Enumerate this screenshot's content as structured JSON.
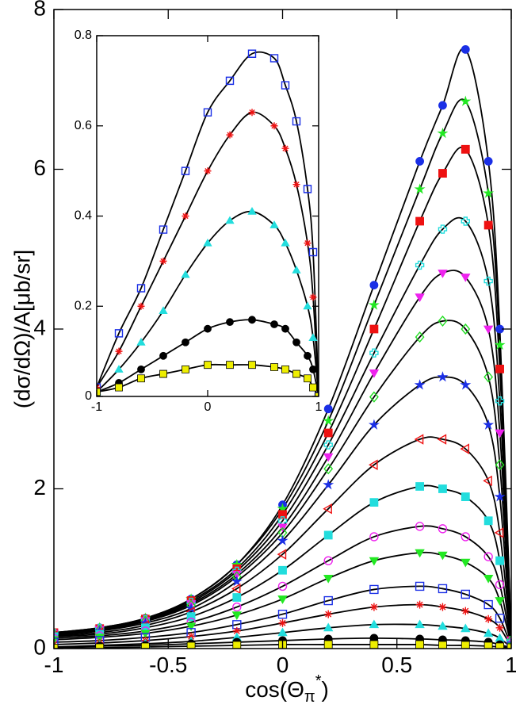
{
  "chart_data": [
    {
      "type": "scatter",
      "fit_curves": true,
      "y_label": "(dσ/dΩ)/A[μb/sr]",
      "x_label": [
        "cos(Θ",
        "π",
        "*",
        ")"
      ],
      "xlim": [
        -1,
        1
      ],
      "ylim": [
        0,
        8
      ],
      "xticks": [
        -1,
        -0.5,
        0,
        0.5,
        1
      ],
      "yticks": [
        0,
        2,
        4,
        6,
        8
      ],
      "x": [
        -1,
        -0.8,
        -0.6,
        -0.4,
        -0.2,
        0,
        0.2,
        0.4,
        0.6,
        0.7,
        0.8,
        0.9,
        0.95,
        1
      ],
      "series": [
        {
          "color": "#1a2fe6",
          "marker": "circle",
          "filled": true,
          "values": [
            0.2,
            0.26,
            0.38,
            0.62,
            1.05,
            1.8,
            3.0,
            4.55,
            6.1,
            6.8,
            7.5,
            6.1,
            4.0,
            0.1
          ]
        },
        {
          "color": "#22e822",
          "marker": "star",
          "filled": true,
          "values": [
            0.2,
            0.26,
            0.38,
            0.62,
            1.05,
            1.75,
            2.85,
            4.3,
            5.75,
            6.45,
            6.85,
            5.7,
            3.8,
            0.1
          ]
        },
        {
          "color": "#ee1111",
          "marker": "square",
          "filled": true,
          "values": [
            0.2,
            0.25,
            0.37,
            0.6,
            1.0,
            1.68,
            2.7,
            4.0,
            5.35,
            5.95,
            6.25,
            5.3,
            3.5,
            0.1
          ]
        },
        {
          "color": "#22dddd",
          "marker": "plus",
          "filled": false,
          "values": [
            0.19,
            0.25,
            0.36,
            0.58,
            0.97,
            1.6,
            2.55,
            3.7,
            4.8,
            5.25,
            5.35,
            4.6,
            3.1,
            0.1
          ]
        },
        {
          "color": "#ee22ee",
          "marker": "tri-down",
          "filled": true,
          "values": [
            0.19,
            0.24,
            0.35,
            0.56,
            0.93,
            1.52,
            2.4,
            3.45,
            4.4,
            4.7,
            4.65,
            4.0,
            2.7,
            0.1
          ]
        },
        {
          "color": "#22dd22",
          "marker": "diamond",
          "filled": false,
          "values": [
            0.18,
            0.23,
            0.34,
            0.54,
            0.9,
            1.45,
            2.25,
            3.15,
            3.9,
            4.1,
            4.0,
            3.4,
            2.3,
            0.1
          ]
        },
        {
          "color": "#1a2fe6",
          "marker": "star",
          "filled": true,
          "values": [
            0.17,
            0.22,
            0.32,
            0.5,
            0.84,
            1.35,
            2.05,
            2.8,
            3.3,
            3.4,
            3.3,
            2.8,
            1.9,
            0.08
          ]
        },
        {
          "color": "#ee1111",
          "marker": "tri-left",
          "filled": false,
          "values": [
            0.16,
            0.2,
            0.29,
            0.46,
            0.75,
            1.18,
            1.75,
            2.3,
            2.62,
            2.62,
            2.5,
            2.1,
            1.45,
            0.07
          ]
        },
        {
          "color": "#22dddd",
          "marker": "square",
          "filled": true,
          "values": [
            0.15,
            0.18,
            0.26,
            0.4,
            0.64,
            0.98,
            1.42,
            1.83,
            2.03,
            2.0,
            1.9,
            1.6,
            1.1,
            0.06
          ]
        },
        {
          "color": "#ee22ee",
          "marker": "circle",
          "filled": false,
          "values": [
            0.13,
            0.16,
            0.22,
            0.33,
            0.52,
            0.78,
            1.1,
            1.4,
            1.53,
            1.5,
            1.4,
            1.15,
            0.8,
            0.05
          ]
        },
        {
          "color": "#22e822",
          "marker": "tri-down",
          "filled": true,
          "values": [
            0.11,
            0.14,
            0.19,
            0.28,
            0.42,
            0.62,
            0.88,
            1.1,
            1.2,
            1.17,
            1.08,
            0.88,
            0.6,
            0.04
          ]
        },
        {
          "color": "#1a2fe6",
          "marker": "square",
          "filled": false,
          "values": [
            0.08,
            0.1,
            0.14,
            0.2,
            0.3,
            0.43,
            0.6,
            0.74,
            0.78,
            0.75,
            0.68,
            0.55,
            0.38,
            0.03
          ]
        },
        {
          "color": "#ee1111",
          "marker": "asterisk",
          "filled": false,
          "values": [
            0.05,
            0.07,
            0.1,
            0.15,
            0.22,
            0.32,
            0.43,
            0.52,
            0.55,
            0.52,
            0.47,
            0.37,
            0.26,
            0.02
          ]
        },
        {
          "color": "#22dddd",
          "marker": "tri-up",
          "filled": true,
          "values": [
            0.02,
            0.04,
            0.06,
            0.09,
            0.14,
            0.2,
            0.26,
            0.3,
            0.3,
            0.28,
            0.25,
            0.19,
            0.13,
            0.01
          ]
        },
        {
          "color": "#000000",
          "marker": "circle",
          "filled": true,
          "values": [
            0.01,
            0.03,
            0.04,
            0.06,
            0.08,
            0.1,
            0.12,
            0.13,
            0.12,
            0.11,
            0.1,
            0.08,
            0.05,
            0.01
          ]
        },
        {
          "color": "#eeee00",
          "marker": "square",
          "filled": true,
          "values": [
            0.005,
            0.01,
            0.02,
            0.03,
            0.04,
            0.05,
            0.05,
            0.05,
            0.05,
            0.04,
            0.04,
            0.03,
            0.02,
            0.01
          ]
        }
      ]
    },
    {
      "type": "scatter",
      "fit_curves": true,
      "xlim": [
        -1,
        1
      ],
      "ylim": [
        0,
        0.8
      ],
      "xticks": [
        -1,
        0,
        1
      ],
      "yticks": [
        0,
        0.2,
        0.4,
        0.6,
        0.8
      ],
      "x": [
        -1,
        -0.8,
        -0.6,
        -0.4,
        -0.2,
        0,
        0.2,
        0.4,
        0.6,
        0.7,
        0.8,
        0.9,
        0.95,
        1
      ],
      "series": [
        {
          "color": "#1a2fe6",
          "marker": "square",
          "filled": false,
          "values": [
            0.02,
            0.14,
            0.24,
            0.37,
            0.5,
            0.63,
            0.7,
            0.76,
            0.75,
            0.69,
            0.61,
            0.46,
            0.32,
            0.0
          ]
        },
        {
          "color": "#ee1111",
          "marker": "asterisk",
          "filled": false,
          "values": [
            0.02,
            0.1,
            0.2,
            0.3,
            0.4,
            0.5,
            0.58,
            0.63,
            0.6,
            0.55,
            0.47,
            0.34,
            0.22,
            0.0
          ]
        },
        {
          "color": "#22dddd",
          "marker": "tri-up",
          "filled": true,
          "values": [
            0.01,
            0.06,
            0.12,
            0.19,
            0.27,
            0.34,
            0.39,
            0.41,
            0.38,
            0.34,
            0.28,
            0.2,
            0.13,
            0.0
          ]
        },
        {
          "color": "#000000",
          "marker": "circle",
          "filled": true,
          "values": [
            0.01,
            0.03,
            0.06,
            0.09,
            0.12,
            0.15,
            0.165,
            0.17,
            0.16,
            0.15,
            0.12,
            0.09,
            0.06,
            0.0
          ]
        },
        {
          "color": "#eeee00",
          "marker": "square",
          "filled": true,
          "values": [
            0.01,
            0.02,
            0.04,
            0.05,
            0.06,
            0.07,
            0.07,
            0.07,
            0.065,
            0.06,
            0.05,
            0.04,
            0.02,
            0.0
          ]
        }
      ]
    }
  ]
}
